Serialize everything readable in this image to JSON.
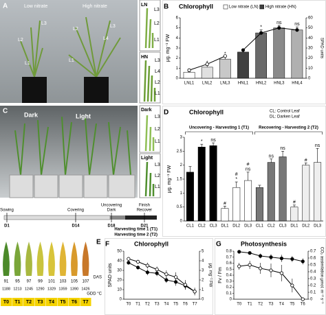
{
  "panel_labels": [
    "A",
    "B",
    "C",
    "D",
    "E",
    "F",
    "G"
  ],
  "photos": {
    "a": {
      "labels": [
        "Low nitrate",
        "High nitrate"
      ],
      "leaves": [
        "L1",
        "L2",
        "L3",
        "L1",
        "L2",
        "L3",
        "L4"
      ]
    },
    "ln": {
      "title": "LN",
      "leaves": [
        "L3",
        "L2",
        "L1"
      ]
    },
    "hn": {
      "title": "HN",
      "leaves": [
        "L3",
        "L4",
        "L2",
        "L1"
      ]
    },
    "c": {
      "labels": [
        "Dark",
        "Light"
      ]
    },
    "dark": {
      "title": "Dark",
      "leaves": [
        "L3",
        "L2",
        "L1"
      ]
    },
    "light": {
      "title": "Light",
      "leaves": [
        "L3",
        "L2",
        "L1"
      ]
    },
    "e": {
      "das": [
        "91",
        "95",
        "97",
        "99",
        "101",
        "103",
        "105",
        "107"
      ],
      "das_label": "DAS",
      "gdd": [
        "1188",
        "1213",
        "1245",
        "1290",
        "1329",
        "1359",
        "1390",
        "1426"
      ],
      "gdd_label": "GDD °C",
      "times": [
        "T0",
        "T1",
        "T2",
        "T3",
        "T4",
        "T5",
        "T6",
        "T7"
      ]
    }
  },
  "timeline": {
    "events": [
      {
        "day": "D1",
        "label": [
          "Sowing"
        ]
      },
      {
        "day": "D14",
        "label": [
          "Covering"
        ]
      },
      {
        "day": "D18",
        "label": [
          "Uncovering",
          "Dark"
        ]
      },
      {
        "day": "D21",
        "label": [
          "Finish",
          "Recover"
        ]
      }
    ],
    "harvest": [
      "Harvesting time 1 (T1)",
      "Harvesting time 2 (T2)"
    ]
  },
  "chart_data": [
    {
      "type": "bar",
      "title": "Chlorophyll",
      "categories": [
        "LNL1",
        "LNL2",
        "LNL3",
        "HNL1",
        "HNL2",
        "HNL3",
        "HNL4"
      ],
      "ylabel": "μg. mg⁻¹ FW",
      "y2label": "SPAD units",
      "ylim": [
        0,
        6
      ],
      "yticks": [
        0,
        1,
        2,
        3,
        4,
        5,
        6
      ],
      "y2lim": [
        0,
        60
      ],
      "y2ticks": [
        0,
        10,
        20,
        30,
        40,
        50,
        60
      ],
      "series": [
        {
          "name": "Low nitrate (LN)",
          "color": "#ffffff",
          "values": [
            0.6,
            1.1,
            1.9,
            null,
            null,
            null,
            null
          ],
          "errors": [
            0.05,
            0.15,
            0.25,
            null,
            null,
            null,
            null
          ],
          "bar_colors": [
            "#ffffff",
            "#e0e0e0",
            "#c8c8c8",
            null,
            null,
            null,
            null
          ]
        },
        {
          "name": "High nitrate (HN)",
          "color": "#404040",
          "values": [
            null,
            null,
            null,
            2.6,
            4.5,
            5.0,
            4.8
          ],
          "errors": [
            null,
            null,
            null,
            0.2,
            0.3,
            0.25,
            0.3
          ],
          "bar_colors": [
            null,
            null,
            null,
            "#404040",
            "#6a6a6a",
            "#8a8a8a",
            "#b0b0b0"
          ]
        },
        {
          "kind": "line",
          "axis": "y2",
          "color": "#000000",
          "marker_fill": "#ffffff",
          "values": [
            8,
            14,
            22,
            null,
            null,
            null,
            null
          ]
        },
        {
          "kind": "line",
          "axis": "y2",
          "color": "#000000",
          "marker_fill": "#000000",
          "values": [
            null,
            null,
            null,
            28,
            45,
            50,
            48
          ]
        }
      ],
      "annotations": [
        null,
        "*",
        "*",
        null,
        "*",
        "ns",
        "ns"
      ]
    },
    {
      "type": "bar",
      "title": "Chlorophyll",
      "categories": [
        "CL1",
        "CL2",
        "CL3",
        "DL1",
        "DL2",
        "DL3",
        "CL1",
        "CL2",
        "CL3",
        "DL1",
        "DL2",
        "DL3"
      ],
      "ylabel": "μg. mg⁻¹ FW",
      "ylim": [
        0,
        3
      ],
      "yticks": [
        0,
        0.5,
        1,
        1.5,
        2,
        2.5,
        3
      ],
      "group_labels": [
        "Uncovering - Harvesting 1 (T1)",
        "Recovering - Harvesting 2 (T2)"
      ],
      "notes": [
        "CL: Control Leaf",
        "DL: Darken Leaf"
      ],
      "series": [
        {
          "values": [
            1.75,
            2.65,
            2.7,
            0.45,
            1.2,
            1.45,
            1.2,
            2.1,
            2.3,
            0.5,
            2.0,
            2.1
          ],
          "errors": [
            0.2,
            0.1,
            0.1,
            0.08,
            0.2,
            0.3,
            0.08,
            0.12,
            0.2,
            0.07,
            0.08,
            0.5
          ],
          "bar_colors": [
            "#000000",
            "#000000",
            "#000000",
            "#ffffff",
            "#ffffff",
            "#ffffff",
            "#777777",
            "#777777",
            "#777777",
            "#eeeeee",
            "#eeeeee",
            "#eeeeee"
          ]
        }
      ],
      "annotations": [
        null,
        "*",
        "ns",
        "#",
        "# *",
        "# ns",
        null,
        "ns",
        "ns",
        "#",
        "#",
        "ns"
      ]
    },
    {
      "type": "line",
      "title": "Chlorophyll",
      "categories": [
        "T0",
        "T1",
        "T2",
        "T3",
        "T4",
        "T5",
        "T6",
        "T7"
      ],
      "ylabel": "SPAD units",
      "y2label": "μg. mg⁻¹ FW",
      "ylim": [
        0,
        50
      ],
      "yticks": [
        0,
        10,
        20,
        30,
        40,
        50
      ],
      "y2lim": [
        0,
        5
      ],
      "y2ticks": [
        0,
        1,
        2,
        3,
        4,
        5
      ],
      "series": [
        {
          "color": "#000000",
          "marker_fill": "#000000",
          "values": [
            38,
            33,
            28,
            27,
            20,
            18,
            14,
            8
          ],
          "errors": [
            2,
            2,
            3,
            3,
            3,
            4,
            4,
            3
          ]
        },
        {
          "axis": "y2",
          "color": "#000000",
          "marker_fill": "#ffffff",
          "values": [
            4.2,
            3.9,
            3.5,
            3.1,
            2.6,
            2.3,
            1.5,
            0.8
          ],
          "errors": [
            0.2,
            0.2,
            0.3,
            0.3,
            0.4,
            0.5,
            0.5,
            0.4
          ]
        }
      ]
    },
    {
      "type": "line",
      "title": "Photosynthesis",
      "categories": [
        "T0",
        "T1",
        "T2",
        "T3",
        "T4",
        "T5",
        "T6"
      ],
      "ylabel": "Fv / Fm",
      "y2label": "CO₂ assimilation µmol. m⁻² s⁻¹",
      "ylim": [
        0,
        0.8
      ],
      "yticks": [
        0,
        0.1,
        0.2,
        0.3,
        0.4,
        0.5,
        0.6,
        0.7,
        0.8
      ],
      "y2lim": [
        0,
        0.7
      ],
      "y2ticks": [
        0,
        0.1,
        0.2,
        0.3,
        0.4,
        0.5,
        0.6,
        0.7
      ],
      "series": [
        {
          "color": "#000000",
          "marker_fill": "#000000",
          "values": [
            0.79,
            0.77,
            0.72,
            0.7,
            0.68,
            0.67,
            0.63
          ],
          "errors": [
            0.02,
            0.02,
            0.04,
            0.05,
            0.06,
            0.05,
            0.05
          ]
        },
        {
          "axis": "y2",
          "color": "#000000",
          "marker_fill": "#ffffff",
          "values": [
            0.48,
            0.5,
            0.45,
            0.42,
            0.38,
            0.2,
            0.0
          ],
          "errors": [
            0.05,
            0.06,
            0.08,
            0.1,
            0.12,
            0.1,
            0.02
          ]
        }
      ]
    }
  ]
}
